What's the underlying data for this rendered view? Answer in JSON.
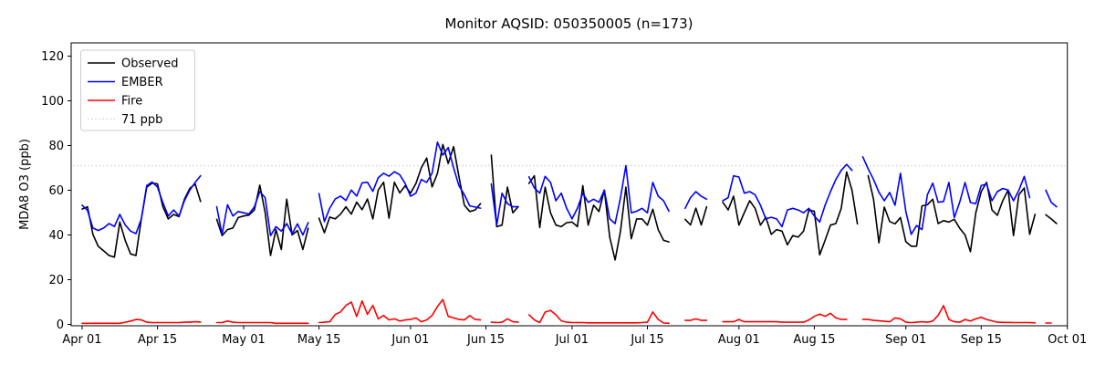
{
  "chart_data": {
    "type": "line",
    "title": "Monitor AQSID: 050350005 (n=173)",
    "xlabel": "",
    "ylabel": "MDA8 O3 (ppb)",
    "ylim": [
      0,
      120
    ],
    "yticks": [
      0,
      20,
      40,
      60,
      80,
      100,
      120
    ],
    "x_start_date": "Apr 01",
    "x_end_date": "Oct 01",
    "x_tick_labels": [
      "Apr 01",
      "Apr 15",
      "May 01",
      "May 15",
      "Jun 01",
      "Jun 15",
      "Jul 01",
      "Jul 15",
      "Aug 01",
      "Aug 15",
      "Sep 01",
      "Sep 15",
      "Oct 01"
    ],
    "x_tick_day_index": [
      0,
      14,
      30,
      44,
      61,
      75,
      91,
      105,
      122,
      136,
      153,
      167,
      183
    ],
    "grid": false,
    "legend_position": "upper left",
    "background_color": "#ffffff",
    "threshold": {
      "label": "71 ppb",
      "value": 71,
      "color": "#d3d3d3",
      "style": "dotted"
    },
    "series": [
      {
        "name": "Observed",
        "color": "#000000",
        "values": [
          51.6,
          52.6,
          40.3,
          34.9,
          32.9,
          30.8,
          30.1,
          45.8,
          37.6,
          31.5,
          30.8,
          47.2,
          61.4,
          63.2,
          62.8,
          52.6,
          47.2,
          49.2,
          48.2,
          56,
          60.8,
          62.8,
          55,
          null,
          null,
          47,
          39.7,
          42.4,
          43.1,
          47.8,
          48.5,
          48.9,
          51.2,
          62.3,
          50,
          30.8,
          42.4,
          33.5,
          56,
          40,
          42,
          33.5,
          43,
          null,
          47.5,
          41,
          48,
          47.2,
          49.3,
          52.6,
          49.3,
          54.7,
          51.3,
          56.1,
          47.2,
          60.1,
          63.6,
          47.5,
          63.6,
          58.8,
          62,
          58.7,
          63,
          70,
          74.4,
          61.5,
          67.5,
          80.5,
          72,
          79.5,
          66,
          53.3,
          50.5,
          51.2,
          54,
          null,
          75.7,
          43.7,
          44.4,
          61.4,
          49.9,
          52.6,
          null,
          63,
          66.5,
          43.3,
          61.4,
          49.9,
          44.4,
          43.7,
          45.5,
          45.8,
          43.7,
          62.1,
          44.4,
          53.3,
          50.5,
          60.1,
          39,
          28.8,
          41.7,
          61.4,
          38.3,
          47.2,
          47.2,
          44.4,
          51.5,
          42.4,
          37.6,
          36.9,
          null,
          null,
          47,
          44.5,
          52,
          44.5,
          52.6,
          null,
          null,
          54.6,
          51.2,
          57.4,
          44.4,
          50,
          55.3,
          51.9,
          44.4,
          47.9,
          40.3,
          42.4,
          41.7,
          35.6,
          39.7,
          39,
          41.7,
          51.2,
          50.6,
          31.1,
          37.6,
          44.4,
          45.1,
          51.9,
          68.2,
          60,
          45,
          null,
          66.5,
          56,
          36.5,
          52.5,
          46,
          45,
          47.8,
          37,
          35,
          35,
          53,
          53.5,
          56,
          45.1,
          46.4,
          45.8,
          47,
          43,
          40,
          32.5,
          49.9,
          59.4,
          63.5,
          51.2,
          48.8,
          55.3,
          60.1,
          39.7,
          58,
          61,
          40.3,
          49.2,
          null,
          49,
          47.2,
          45.1,
          null
        ]
      },
      {
        "name": "EMBER",
        "color": "#0000ff",
        "values": [
          53.3,
          51,
          43.1,
          42,
          43.1,
          45.1,
          43.8,
          49.2,
          44.5,
          41.7,
          40.6,
          47.2,
          62.1,
          63.7,
          61.4,
          54.5,
          48.5,
          51.2,
          48.5,
          55.3,
          60.1,
          63.5,
          66.5,
          null,
          null,
          52.6,
          40.3,
          53.5,
          48.5,
          50.5,
          49.9,
          49.4,
          52.6,
          59.4,
          56.7,
          39.7,
          43.7,
          41.7,
          45.1,
          40.5,
          45,
          40,
          45.5,
          null,
          58.5,
          46,
          52,
          56.1,
          57.4,
          55.4,
          60.1,
          57.4,
          63.3,
          63.6,
          59.5,
          65.6,
          67.6,
          66.3,
          68.3,
          66.9,
          63,
          57.3,
          58.7,
          64.8,
          63.5,
          67.6,
          81.5,
          75.7,
          79.1,
          70,
          62,
          58,
          53,
          52.5,
          52,
          null,
          62.8,
          44.4,
          58.7,
          54,
          52.6,
          52.6,
          null,
          66,
          61,
          58.7,
          66.2,
          63.5,
          55.3,
          58.7,
          51.9,
          47.2,
          51.9,
          58.7,
          54.6,
          56,
          54.6,
          60.1,
          47.2,
          45.1,
          56.7,
          71,
          49.9,
          50.6,
          51.9,
          49.9,
          63.5,
          57.4,
          55.3,
          50.6,
          null,
          null,
          51.9,
          56.7,
          59.4,
          57.3,
          56,
          null,
          null,
          55.3,
          56.7,
          66.5,
          65.9,
          58.7,
          59.4,
          58,
          53.3,
          47.2,
          47.9,
          47.2,
          43.7,
          51.2,
          51.9,
          51.2,
          49.9,
          51.9,
          48.5,
          45.8,
          53.3,
          59.4,
          64.8,
          68.9,
          71.6,
          68.9,
          null,
          75,
          69.6,
          64.8,
          59.1,
          55.3,
          59,
          53.3,
          67.6,
          50.5,
          40.3,
          44.2,
          42.4,
          58,
          63.2,
          54.6,
          55,
          63.5,
          47.8,
          54.6,
          63.5,
          54.5,
          54,
          62.1,
          62.8,
          55.3,
          59.4,
          60.8,
          60.1,
          55.3,
          60,
          66.2,
          56.7,
          null,
          null,
          60,
          54.6,
          52.6,
          null
        ]
      },
      {
        "name": "Fire",
        "color": "#ff0000",
        "values": [
          0.5,
          0.5,
          0.5,
          0.5,
          0.5,
          0.5,
          0.5,
          0.5,
          1,
          1.5,
          2.2,
          2,
          1,
          0.8,
          0.8,
          0.8,
          0.8,
          0.8,
          0.8,
          1,
          1,
          1.2,
          1,
          null,
          null,
          0.8,
          0.8,
          1.5,
          1,
          0.8,
          0.8,
          0.8,
          0.8,
          0.8,
          0.8,
          0.8,
          0.5,
          0.5,
          0.5,
          0.5,
          0.5,
          0.5,
          0.5,
          null,
          0.8,
          1,
          1.2,
          4.4,
          5.6,
          8.5,
          10,
          3.5,
          10.5,
          4.5,
          8.5,
          2.5,
          4,
          2,
          2.5,
          1.5,
          2,
          2.2,
          2.9,
          1.2,
          2,
          4,
          8,
          11.1,
          3.6,
          2.9,
          2.2,
          2,
          3.9,
          2.2,
          2,
          null,
          1,
          0.8,
          1,
          2.5,
          1.2,
          1,
          null,
          4.3,
          2,
          0.8,
          5.5,
          6.3,
          4.3,
          1.6,
          1,
          0.8,
          0.8,
          0.8,
          0.7,
          0.7,
          0.7,
          0.7,
          0.7,
          0.7,
          0.7,
          0.7,
          0.7,
          0.7,
          0.8,
          1,
          5.6,
          2.2,
          0.6,
          0.5,
          null,
          null,
          1.8,
          1.8,
          2.5,
          1.8,
          1.8,
          null,
          null,
          1.2,
          1.2,
          1.2,
          2.2,
          1.2,
          1.2,
          1.2,
          1.2,
          1.2,
          1.2,
          1.2,
          1,
          1,
          1,
          1,
          1,
          2,
          3.6,
          4.6,
          3.6,
          5,
          2.9,
          2.2,
          2.2,
          null,
          null,
          2.2,
          2.2,
          1.8,
          1.6,
          1.4,
          1.2,
          2.9,
          2.5,
          1,
          0.8,
          1,
          1.2,
          1,
          1.5,
          4,
          8.4,
          2.2,
          1.2,
          1,
          2.2,
          1.5,
          2.5,
          3.2,
          2.2,
          1.6,
          1,
          0.9,
          0.9,
          0.8,
          0.8,
          0.8,
          0.8,
          0.7,
          null,
          0.6,
          0.6,
          null,
          null
        ]
      }
    ]
  }
}
